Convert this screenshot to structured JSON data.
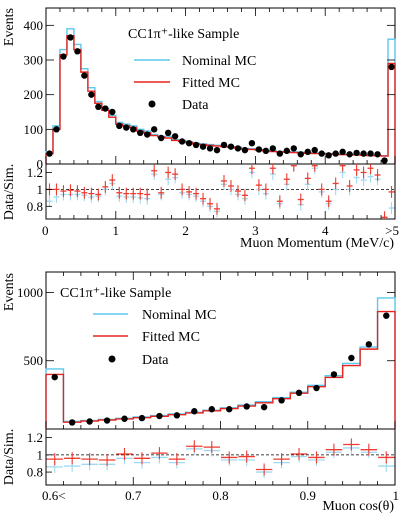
{
  "colors": {
    "nominal": "#5bc8ee",
    "fitted": "#e8231e",
    "data": "#000000",
    "ratio_nominal": "#9fd9f1",
    "ratio_fitted": "#ef3b30"
  },
  "chart_data": [
    {
      "type": "histogram",
      "title": "CC1π⁺-like Sample",
      "xlabel": "Muon Momentum (MeV/c)",
      "ylabel": "Events",
      "ratio_ylabel": "Data/Sim.",
      "xlim": [
        0,
        5
      ],
      "ylim": [
        0,
        450
      ],
      "ratio_ylim": [
        0.65,
        1.3
      ],
      "x_ticks": [
        "0",
        "1",
        "2",
        "3",
        "4",
        ">5"
      ],
      "y_ticks": [
        "0",
        "100",
        "200",
        "300",
        "400"
      ],
      "ratio_ticks": [
        "0.8",
        "1",
        "1.2"
      ],
      "legend": [
        "Nominal MC",
        "Fitted MC",
        "Data"
      ],
      "legend_position": "top-right",
      "bin_edges": [
        0,
        0.1,
        0.2,
        0.3,
        0.4,
        0.5,
        0.6,
        0.7,
        0.8,
        0.9,
        1.0,
        1.1,
        1.2,
        1.3,
        1.4,
        1.5,
        1.6,
        1.7,
        1.8,
        1.9,
        2.0,
        2.1,
        2.2,
        2.3,
        2.4,
        2.5,
        2.6,
        2.7,
        2.8,
        2.9,
        3.0,
        3.1,
        3.2,
        3.3,
        3.4,
        3.5,
        3.6,
        3.7,
        3.8,
        3.9,
        4.0,
        4.1,
        4.2,
        4.3,
        4.4,
        4.5,
        4.6,
        4.7,
        4.8,
        4.9,
        5.0
      ],
      "series": [
        {
          "name": "Nominal MC",
          "values": [
            35,
            110,
            330,
            390,
            345,
            275,
            220,
            180,
            160,
            140,
            120,
            115,
            110,
            100,
            95,
            85,
            80,
            80,
            70,
            68,
            64,
            60,
            58,
            56,
            54,
            52,
            50,
            48,
            45,
            44,
            42,
            40,
            38,
            36,
            36,
            35,
            34,
            33,
            32,
            31,
            30,
            30,
            29,
            28,
            28,
            27,
            26,
            25,
            24,
            360
          ]
        },
        {
          "name": "Fitted MC",
          "values": [
            30,
            100,
            315,
            370,
            330,
            265,
            210,
            175,
            155,
            135,
            115,
            110,
            105,
            95,
            90,
            82,
            78,
            75,
            68,
            65,
            62,
            58,
            56,
            54,
            52,
            50,
            48,
            46,
            43,
            42,
            40,
            38,
            36,
            35,
            34,
            33,
            32,
            31,
            30,
            30,
            29,
            28,
            27,
            27,
            26,
            25,
            24,
            24,
            23,
            290
          ]
        },
        {
          "name": "Data",
          "values": [
            30,
            100,
            310,
            365,
            325,
            255,
            200,
            165,
            160,
            150,
            110,
            105,
            100,
            90,
            85,
            100,
            75,
            90,
            80,
            65,
            60,
            55,
            50,
            45,
            40,
            55,
            50,
            45,
            40,
            60,
            42,
            38,
            45,
            30,
            38,
            45,
            28,
            35,
            40,
            30,
            25,
            30,
            35,
            28,
            32,
            30,
            30,
            28,
            10,
            280
          ]
        }
      ],
      "ratio_series": [
        {
          "name": "Nominal MC",
          "values": [
            0.86,
            0.91,
            0.94,
            0.94,
            0.94,
            0.93,
            0.91,
            0.92,
            1.0,
            1.07,
            0.92,
            0.91,
            0.91,
            0.9,
            0.89,
            1.18,
            0.94,
            1.12,
            1.14,
            0.96,
            0.94,
            0.92,
            0.86,
            0.8,
            0.74,
            1.06,
            1.0,
            0.94,
            0.89,
            1.2,
            1.0,
            0.95,
            1.18,
            0.83,
            1.06,
            1.29,
            0.82,
            1.06,
            1.25,
            0.97,
            0.83,
            1.0,
            1.2,
            1.0,
            1.14,
            1.11,
            1.15,
            1.12,
            0.42,
            0.78
          ]
        },
        {
          "name": "Fitted MC",
          "values": [
            1.0,
            1.0,
            0.98,
            0.99,
            0.98,
            0.96,
            0.95,
            0.94,
            1.03,
            1.11,
            0.96,
            0.95,
            0.95,
            0.95,
            0.94,
            1.22,
            0.96,
            1.2,
            1.18,
            1.0,
            0.97,
            0.95,
            0.89,
            0.83,
            0.77,
            1.1,
            1.04,
            0.98,
            0.93,
            1.25,
            1.05,
            1.0,
            1.25,
            0.86,
            1.12,
            1.36,
            0.88,
            1.13,
            1.33,
            1.0,
            0.86,
            1.07,
            1.3,
            1.04,
            1.23,
            1.2,
            1.25,
            1.17,
            0.43,
            0.97
          ]
        }
      ]
    },
    {
      "type": "histogram",
      "title": "CC1π⁺-like Sample",
      "xlabel": "Muon cos(θ)",
      "ylabel": "Events",
      "ratio_ylabel": "Data/Sim.",
      "xlim": [
        0.6,
        1.0
      ],
      "ylim": [
        0,
        1150
      ],
      "ratio_ylim": [
        0.65,
        1.3
      ],
      "x_ticks": [
        "0.6<",
        "0.7",
        "0.8",
        "0.9",
        "1"
      ],
      "y_ticks": [
        "500",
        "1000"
      ],
      "ratio_ticks": [
        "0.8",
        "1",
        "1.2"
      ],
      "legend": [
        "Nominal MC",
        "Fitted MC",
        "Data"
      ],
      "legend_position": "top-left",
      "bin_edges": [
        0.6,
        0.62,
        0.64,
        0.66,
        0.68,
        0.7,
        0.72,
        0.74,
        0.76,
        0.78,
        0.8,
        0.82,
        0.84,
        0.86,
        0.88,
        0.9,
        0.92,
        0.94,
        0.96,
        0.98,
        1.0
      ],
      "series": [
        {
          "name": "Nominal MC",
          "values": [
            440,
            55,
            62,
            70,
            78,
            88,
            98,
            110,
            122,
            138,
            155,
            175,
            200,
            230,
            270,
            320,
            390,
            480,
            600,
            960
          ]
        },
        {
          "name": "Fitted MC",
          "values": [
            400,
            50,
            58,
            66,
            74,
            83,
            93,
            105,
            118,
            133,
            150,
            168,
            192,
            222,
            262,
            310,
            378,
            465,
            585,
            860
          ]
        },
        {
          "name": "Data",
          "values": [
            380,
            48,
            55,
            62,
            75,
            80,
            95,
            100,
            130,
            145,
            145,
            165,
            160,
            210,
            265,
            300,
            400,
            520,
            620,
            830
          ]
        }
      ],
      "ratio_series": [
        {
          "name": "Nominal MC",
          "values": [
            0.86,
            0.87,
            0.89,
            0.89,
            0.96,
            0.91,
            0.97,
            0.91,
            1.07,
            1.05,
            0.94,
            0.94,
            0.8,
            0.91,
            0.98,
            0.94,
            1.03,
            1.08,
            1.03,
            0.87
          ]
        },
        {
          "name": "Fitted MC",
          "values": [
            0.95,
            0.96,
            0.95,
            0.94,
            1.01,
            0.96,
            1.02,
            0.95,
            1.1,
            1.09,
            0.97,
            0.98,
            0.83,
            0.95,
            1.01,
            0.97,
            1.06,
            1.12,
            1.06,
            0.97
          ]
        }
      ]
    }
  ]
}
